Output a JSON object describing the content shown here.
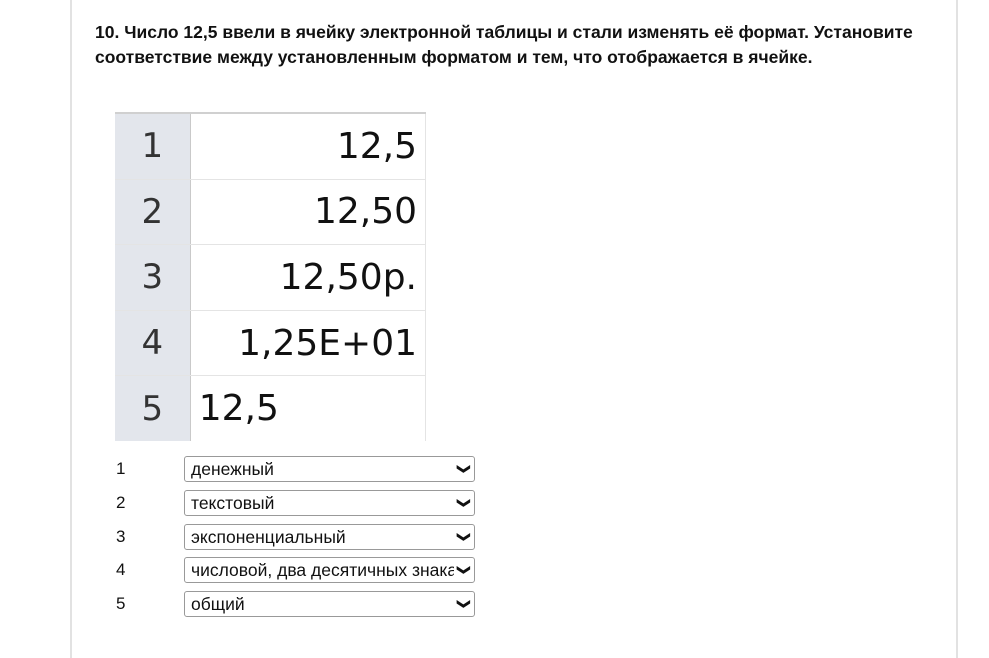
{
  "question": {
    "text": "10. Число 12,5 ввели в ячейку электронной таблицы и стали изменять её формат. Установите соответствие между установленным форматом и тем, что отображается в ячейке."
  },
  "table": {
    "rows": [
      {
        "num": "1",
        "value": "12,5",
        "align": "right"
      },
      {
        "num": "2",
        "value": "12,50",
        "align": "right"
      },
      {
        "num": "3",
        "value": "12,50р.",
        "align": "right"
      },
      {
        "num": "4",
        "value": "1,25E+01",
        "align": "right"
      },
      {
        "num": "5",
        "value": "12,5",
        "align": "left"
      }
    ]
  },
  "answers": [
    {
      "num": "1",
      "selected": "денежный"
    },
    {
      "num": "2",
      "selected": "текстовый"
    },
    {
      "num": "3",
      "selected": "экспоненциальный"
    },
    {
      "num": "4",
      "selected": "числовой, два десятичных знака"
    },
    {
      "num": "5",
      "selected": "общий"
    }
  ],
  "icons": {
    "dropdown": "chevron-down-icon"
  }
}
